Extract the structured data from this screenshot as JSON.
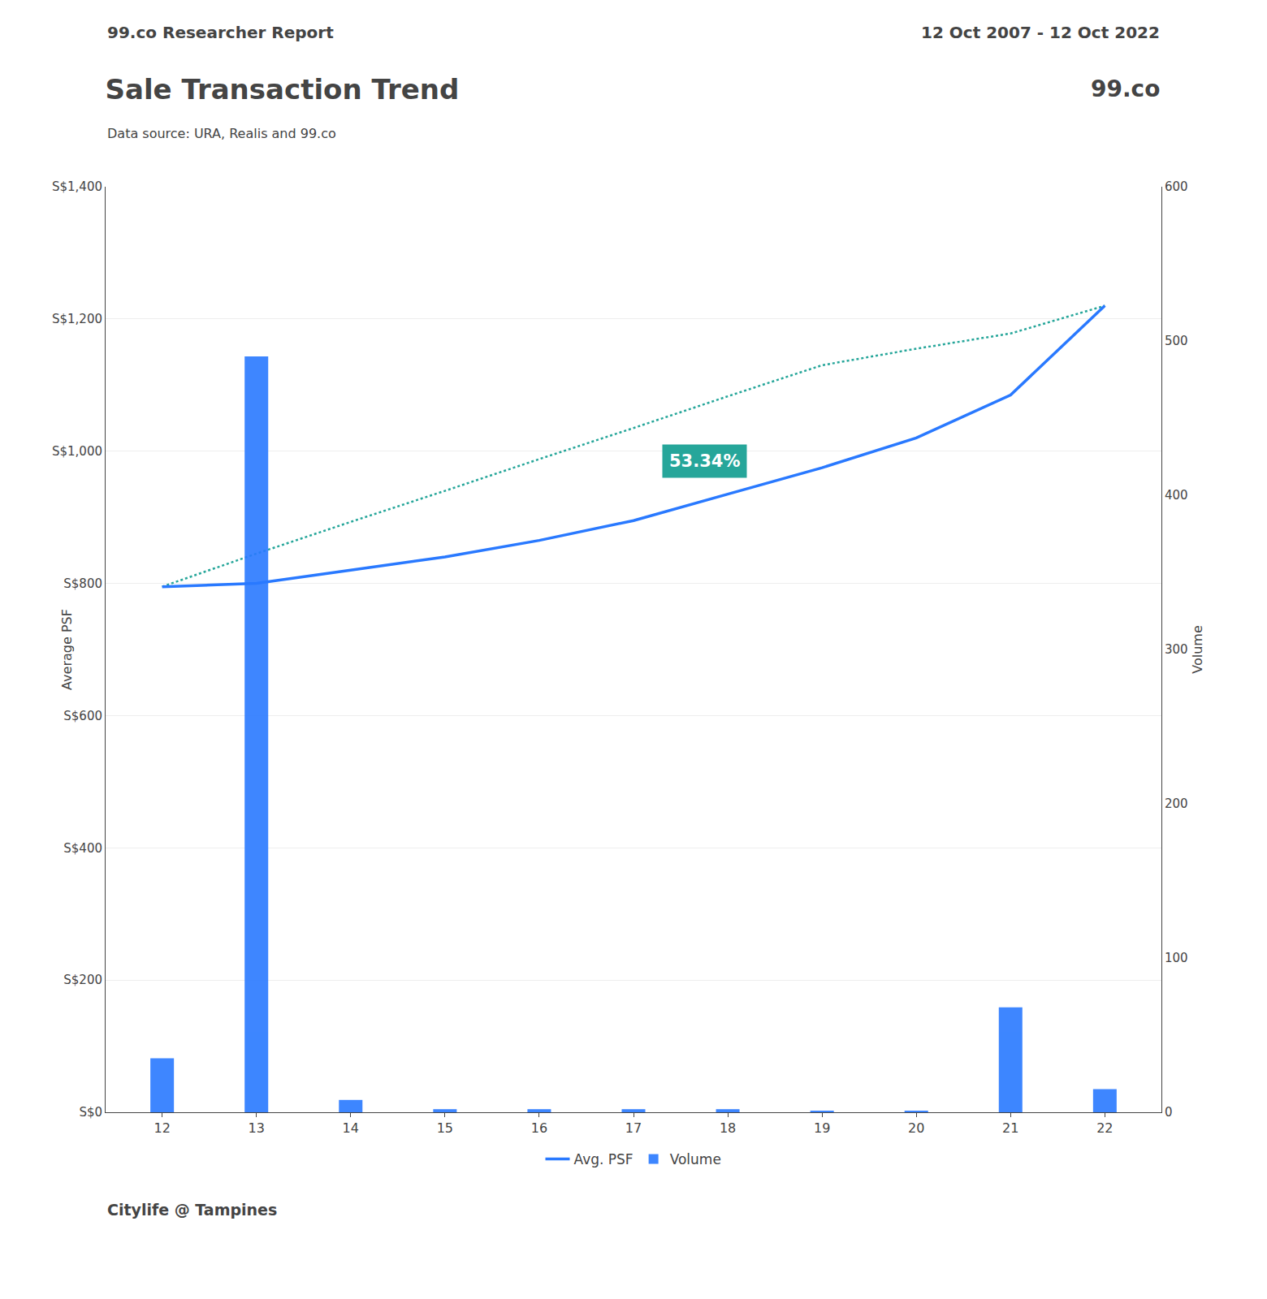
{
  "chart_data": {
    "type": "combo",
    "title": "Sale Transaction Trend",
    "subtitle": "Data source: URA, Realis and 99.co",
    "header": {
      "left": "99.co Researcher Report",
      "right": "12 Oct 2007 - 12 Oct 2022"
    },
    "logo": "99.co",
    "footnote": "Citylife @ Tampines",
    "x": [
      12,
      13,
      14,
      15,
      16,
      17,
      18,
      19,
      20,
      21,
      22
    ],
    "xlim": [
      11.4,
      22.6
    ],
    "xticks": [
      12,
      13,
      14,
      15,
      16,
      17,
      18,
      19,
      20,
      21,
      22
    ],
    "ylabel": "Average PSF",
    "ylim": [
      0,
      1400
    ],
    "yticks": [
      {
        "value": 0,
        "label": "S$0"
      },
      {
        "value": 200,
        "label": "S$200"
      },
      {
        "value": 400,
        "label": "S$400"
      },
      {
        "value": 600,
        "label": "S$600"
      },
      {
        "value": 800,
        "label": "S$800"
      },
      {
        "value": 1000,
        "label": "S$1,000"
      },
      {
        "value": 1200,
        "label": "S$1,200"
      },
      {
        "value": 1400,
        "label": "S$1,400"
      }
    ],
    "y2label": "Volume",
    "y2lim": [
      0,
      600
    ],
    "y2ticks": [
      0,
      100,
      200,
      300,
      400,
      500,
      600
    ],
    "grid": true,
    "legend": "bottom",
    "series": [
      {
        "name": "Volume",
        "type": "bar",
        "axis": "y2",
        "color": "#2979FF",
        "values": [
          35,
          490,
          8,
          2,
          2,
          2,
          2,
          1,
          1,
          68,
          15
        ]
      },
      {
        "type": "line",
        "line_style": "dotted",
        "color": "#26A69A",
        "values": [
          795,
          845,
          893,
          940,
          988,
          1035,
          1083,
          1130,
          1155,
          1178,
          1220
        ]
      },
      {
        "name": "Avg. PSF",
        "type": "line",
        "line_style": "solid",
        "color": "#2979FF",
        "values": [
          795,
          800,
          820,
          840,
          865,
          895,
          935,
          975,
          1020,
          1085,
          1220
        ]
      }
    ],
    "annotations": [
      {
        "text": "53.34%",
        "x": 17.3,
        "y": 985,
        "color": "#ffffff",
        "background": "#26A69A"
      }
    ]
  }
}
